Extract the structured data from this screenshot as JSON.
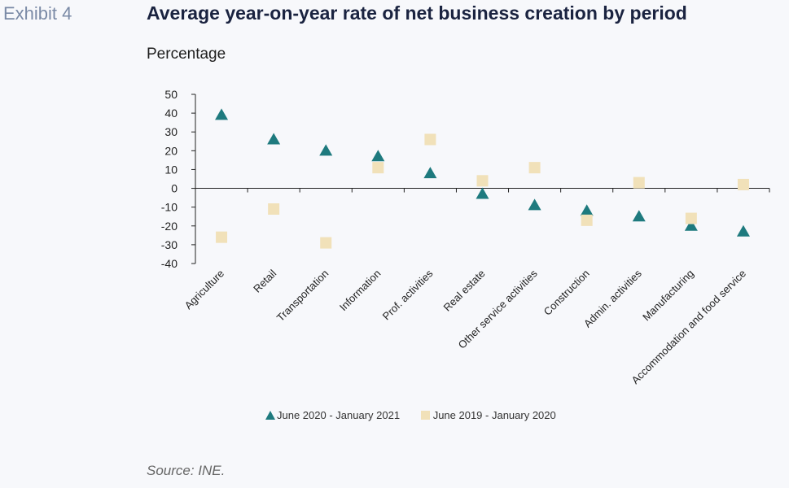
{
  "header": {
    "exhibit": "Exhibit 4",
    "title": "Average year-on-year rate of net business creation by period",
    "subtitle": "Percentage"
  },
  "footer": {
    "source": "Source: INE."
  },
  "colors": {
    "series1": "#1e7a7e",
    "series2": "#f1e1b9",
    "axis": "#222222"
  },
  "chart_data": {
    "type": "scatter",
    "categories": [
      "Agriculture",
      "Retail",
      "Transportation",
      "Information",
      "Prof. activities",
      "Real estate",
      "Other service activities",
      "Construction",
      "Admin. activities",
      "Manufacturing",
      "Accommodation and food service"
    ],
    "yticks": [
      50,
      40,
      30,
      20,
      10,
      0,
      -10,
      -20,
      -30,
      -40
    ],
    "ylim": [
      -40,
      50
    ],
    "grid": false,
    "legend_position": "bottom",
    "series": [
      {
        "name": "June 2020 - January 2021",
        "marker": "triangle",
        "color": "#1e7a7e",
        "values": [
          39,
          26,
          20,
          17,
          8,
          -3,
          -9,
          -12,
          -15,
          -20,
          -23
        ]
      },
      {
        "name": "June 2019 - January 2020",
        "marker": "square",
        "color": "#f1e1b9",
        "values": [
          -26,
          -11,
          -29,
          11,
          26,
          4,
          11,
          -17,
          3,
          -16,
          2
        ]
      }
    ]
  }
}
